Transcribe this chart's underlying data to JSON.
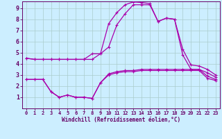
{
  "background_color": "#cceeff",
  "line_color": "#aa00aa",
  "grid_color": "#aacccc",
  "xlabel": "Windchill (Refroidissement éolien,°C)",
  "xlabel_color": "#660066",
  "tick_color": "#660066",
  "xlim": [
    -0.5,
    23.5
  ],
  "ylim": [
    0,
    9.6
  ],
  "xticks": [
    0,
    1,
    2,
    3,
    4,
    5,
    6,
    7,
    8,
    9,
    10,
    11,
    12,
    13,
    14,
    15,
    16,
    17,
    18,
    19,
    20,
    21,
    22,
    23
  ],
  "yticks": [
    1,
    2,
    3,
    4,
    5,
    6,
    7,
    8,
    9
  ],
  "series": [
    {
      "x": [
        0,
        1,
        2,
        3,
        4,
        5,
        6,
        7,
        8,
        9,
        10,
        11,
        12,
        13,
        14,
        15,
        16,
        17,
        18,
        19,
        20,
        21,
        22,
        23
      ],
      "y": [
        4.5,
        4.4,
        4.4,
        4.4,
        4.4,
        4.4,
        4.4,
        4.4,
        4.9,
        4.9,
        7.6,
        8.6,
        9.3,
        9.55,
        9.5,
        9.4,
        7.8,
        8.1,
        8.0,
        5.3,
        3.9,
        3.8,
        3.5,
        3.0
      ]
    },
    {
      "x": [
        0,
        1,
        2,
        3,
        4,
        5,
        6,
        7,
        8,
        9,
        10,
        11,
        12,
        13,
        14,
        15,
        16,
        17,
        18,
        19,
        20,
        21,
        22,
        23
      ],
      "y": [
        4.5,
        4.4,
        4.4,
        4.4,
        4.4,
        4.4,
        4.4,
        4.4,
        4.4,
        4.9,
        5.5,
        7.5,
        8.5,
        9.3,
        9.3,
        9.3,
        7.8,
        8.1,
        8.0,
        4.8,
        3.5,
        3.5,
        3.2,
        2.8
      ]
    },
    {
      "x": [
        0,
        1,
        2,
        3,
        4,
        5,
        6,
        7,
        8,
        9,
        10,
        11,
        12,
        13,
        14,
        15,
        16,
        17,
        18,
        19,
        20,
        21,
        22,
        23
      ],
      "y": [
        2.6,
        2.6,
        2.6,
        1.5,
        1.0,
        1.2,
        1.0,
        1.0,
        0.9,
        2.3,
        3.1,
        3.3,
        3.4,
        3.4,
        3.5,
        3.5,
        3.5,
        3.5,
        3.5,
        3.5,
        3.5,
        3.5,
        2.9,
        2.6
      ]
    },
    {
      "x": [
        0,
        1,
        2,
        3,
        4,
        5,
        6,
        7,
        8,
        9,
        10,
        11,
        12,
        13,
        14,
        15,
        16,
        17,
        18,
        19,
        20,
        21,
        22,
        23
      ],
      "y": [
        2.6,
        2.6,
        2.6,
        1.5,
        1.0,
        1.2,
        1.0,
        1.0,
        0.9,
        2.3,
        3.0,
        3.2,
        3.3,
        3.3,
        3.4,
        3.4,
        3.4,
        3.4,
        3.4,
        3.4,
        3.4,
        3.4,
        2.7,
        2.5
      ]
    }
  ]
}
